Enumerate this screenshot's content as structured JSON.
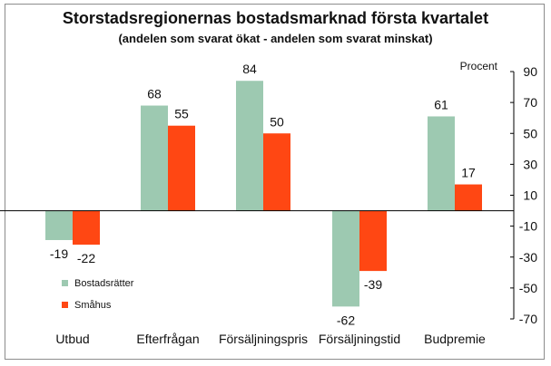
{
  "chart_data": {
    "type": "bar",
    "title": "Storstadsregionernas bostadsmarknad första kvartalet",
    "subtitle": "(andelen som svarat ökat - andelen som svarat minskat)",
    "ylabel": "Procent",
    "categories": [
      "Utbud",
      "Efterfrågan",
      "Försäljningspris",
      "Försäljningstid",
      "Budpremie"
    ],
    "series": [
      {
        "name": "Bostadsrätter",
        "color": "#9dc9b1",
        "values": [
          -19,
          68,
          84,
          -62,
          61
        ]
      },
      {
        "name": "Småhus",
        "color": "#ff4713",
        "values": [
          -22,
          55,
          50,
          -39,
          17
        ]
      }
    ],
    "ylim": [
      -70,
      90
    ],
    "yticks": [
      90,
      70,
      50,
      30,
      10,
      -10,
      -30,
      -50,
      -70
    ],
    "y_axis_side": "right",
    "grid": false,
    "legend_placement": "lower-left"
  }
}
